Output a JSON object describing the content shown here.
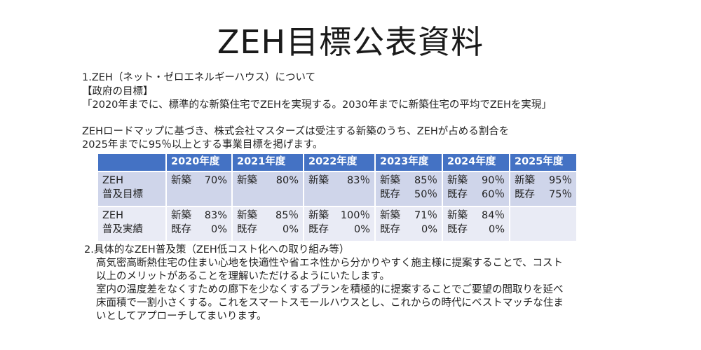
{
  "title": "ZEH目標公表資料",
  "section1": {
    "lines": [
      "1.ZEH（ネット・ゼロエネルギーハウス）について",
      "【政府の目標】",
      "「2020年までに、標準的な新築住宅でZEHを実現する。2030年までに新築住宅の平均でZEHを実現」"
    ],
    "lines2": [
      "ZEHロードマップに基づき、株式会社マスターズは受注する新築のうち、ZEHが占める割合を",
      "2025年までに95％以上とする事業目標を掲げます。"
    ]
  },
  "table": {
    "headers": [
      "",
      "2020年度",
      "2021年度",
      "2022年度",
      "2023年度",
      "2024年度",
      "2025年度"
    ],
    "rows": [
      {
        "label": [
          "ZEH",
          "普及目標"
        ],
        "cells": [
          [
            {
              "k": "新築",
              "v": "70%"
            }
          ],
          [
            {
              "k": "新築",
              "v": "80%"
            }
          ],
          [
            {
              "k": "新築",
              "v": "83％"
            }
          ],
          [
            {
              "k": "新築",
              "v": "85％"
            },
            {
              "k": "既存",
              "v": "50％"
            }
          ],
          [
            {
              "k": "新築",
              "v": "90％"
            },
            {
              "k": "既存",
              "v": "60％"
            }
          ],
          [
            {
              "k": "新築",
              "v": "95％"
            },
            {
              "k": "既存",
              "v": "75％"
            }
          ]
        ]
      },
      {
        "label": [
          "ZEH",
          "普及実績"
        ],
        "cells": [
          [
            {
              "k": "新築",
              "v": "83%"
            },
            {
              "k": "既存",
              "v": "0%"
            }
          ],
          [
            {
              "k": "新築",
              "v": "85％"
            },
            {
              "k": "既存",
              "v": "0%"
            }
          ],
          [
            {
              "k": "新築",
              "v": "100％"
            },
            {
              "k": "既存",
              "v": "0%"
            }
          ],
          [
            {
              "k": "新築",
              "v": "71％"
            },
            {
              "k": "既存",
              "v": "0%"
            }
          ],
          [
            {
              "k": "新築",
              "v": "84％"
            },
            {
              "k": "既存",
              "v": "0%"
            }
          ],
          []
        ]
      }
    ]
  },
  "section2": {
    "heading": "2.具体的なZEH普及策（ZEH低コスト化への取り組み等）",
    "body": [
      "高気密高断熱住宅の住まい心地を快適性や省エネ性から分かりやすく施主様に提案することで、コスト",
      "以上のメリットがあることを理解いただけるようにいたします。",
      "室内の温度差をなくすための廊下を少なくするプランを積極的に提案することでご要望の間取りを延べ",
      "床面積で一割小さくする。これをスマートスモールハウスとし、これからの時代にベストマッチな住ま",
      "いとしてアプローチしてまいります。"
    ]
  },
  "colors": {
    "header_bg": "#4472c4",
    "row1_bg": "#cfd5ea",
    "row2_bg": "#e9ebf5"
  }
}
